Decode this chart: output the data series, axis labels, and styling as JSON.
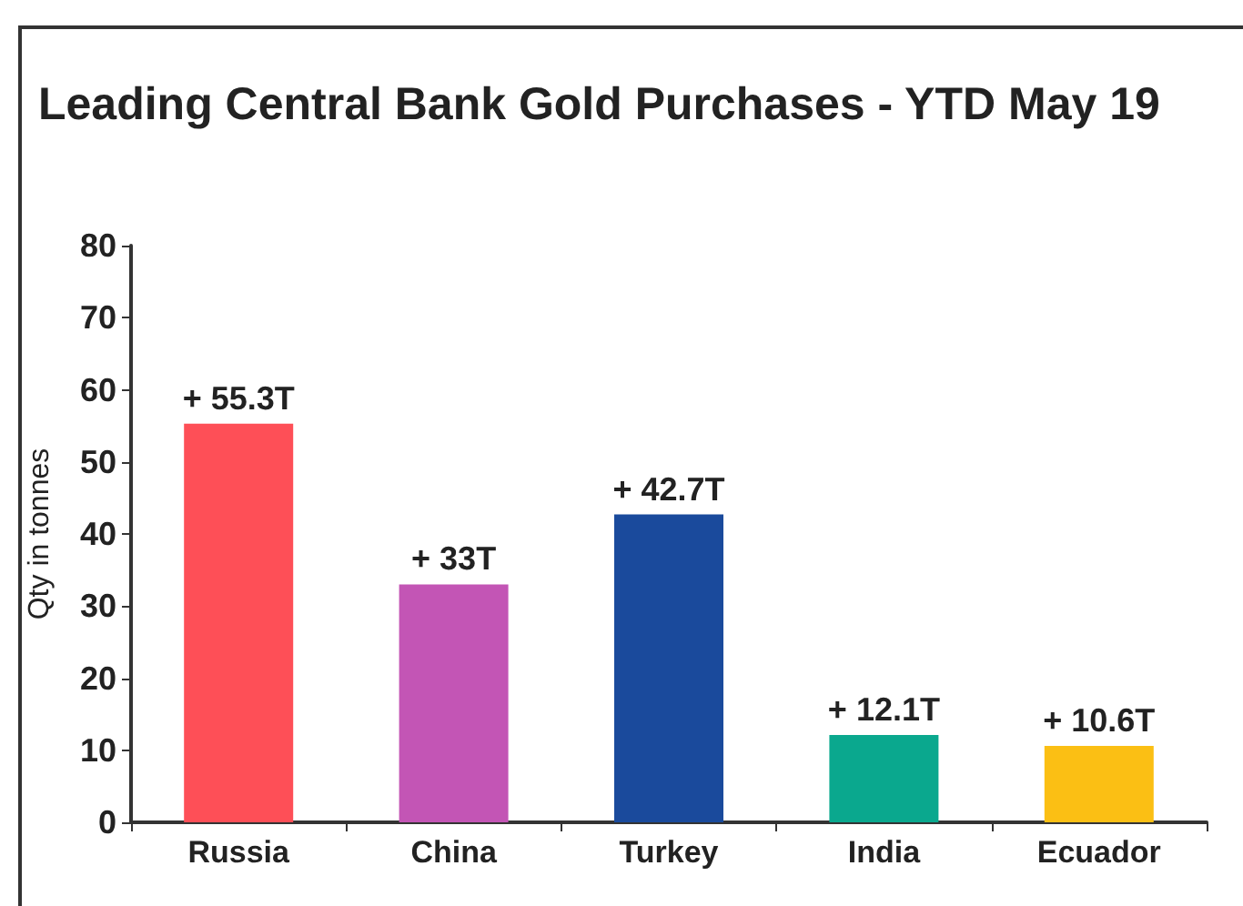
{
  "chart_data": {
    "type": "bar",
    "title": "Leading Central Bank Gold Purchases - YTD May 19",
    "ylabel": "Qty in tonnes",
    "categories": [
      "Russia",
      "China",
      "Turkey",
      "India",
      "Ecuador"
    ],
    "values": [
      55.3,
      33,
      42.7,
      12.1,
      10.6
    ],
    "colors": [
      "#fe4f57",
      "#c355b5",
      "#1a4a9c",
      "#0aa88e",
      "#fbbf14"
    ],
    "value_labels": [
      "+ 55.3T",
      "+ 33T",
      "+ 42.7T",
      "+ 12.1T",
      "+ 10.6T"
    ],
    "ylim": [
      0,
      80
    ],
    "yticks": [
      0,
      10,
      20,
      30,
      40,
      50,
      60,
      70,
      80
    ],
    "grid": false
  }
}
